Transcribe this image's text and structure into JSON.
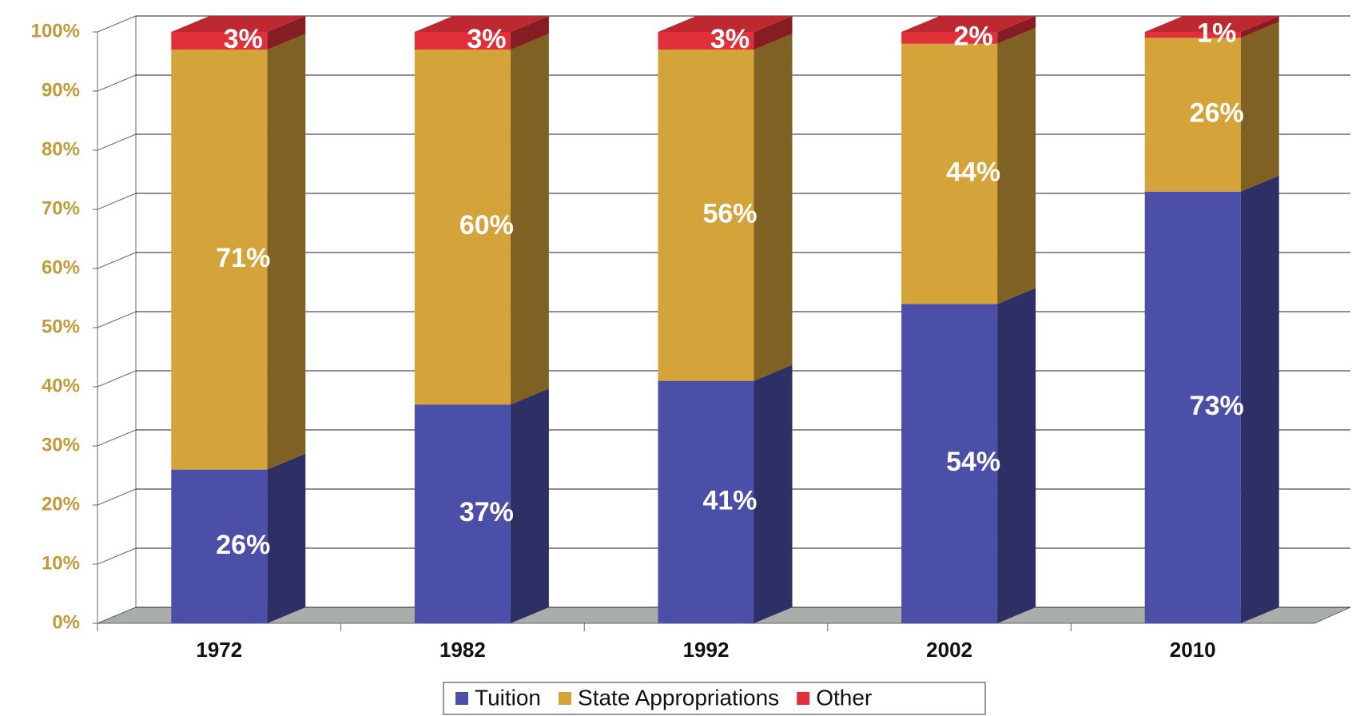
{
  "chart_data": {
    "type": "stacked-bar",
    "categories": [
      "1972",
      "1982",
      "1992",
      "2002",
      "2010"
    ],
    "series": [
      {
        "name": "Tuition",
        "color": "#4b4fa8",
        "values": [
          26,
          37,
          41,
          54,
          73
        ],
        "value_labels": [
          "26%",
          "37%",
          "41%",
          "54%",
          "73%"
        ]
      },
      {
        "name": "State Appropriations",
        "color": "#d4a33a",
        "values": [
          71,
          60,
          56,
          44,
          26
        ],
        "value_labels": [
          "71%",
          "60%",
          "56%",
          "44%",
          "26%"
        ]
      },
      {
        "name": "Other",
        "color": "#e0303a",
        "values": [
          3,
          3,
          3,
          2,
          1
        ],
        "value_labels": [
          "3%",
          "3%",
          "3%",
          "2%",
          "1%"
        ]
      }
    ],
    "ylim": [
      0,
      100
    ],
    "yticks": [
      {
        "value": 0,
        "label": "0%"
      },
      {
        "value": 10,
        "label": "10%"
      },
      {
        "value": 20,
        "label": "20%"
      },
      {
        "value": 30,
        "label": "30%"
      },
      {
        "value": 40,
        "label": "40%"
      },
      {
        "value": 50,
        "label": "50%"
      },
      {
        "value": 60,
        "label": "60%"
      },
      {
        "value": 70,
        "label": "70%"
      },
      {
        "value": 80,
        "label": "80%"
      },
      {
        "value": 90,
        "label": "90%"
      },
      {
        "value": 100,
        "label": "100%"
      }
    ],
    "grid": true,
    "legend": "bottom"
  }
}
